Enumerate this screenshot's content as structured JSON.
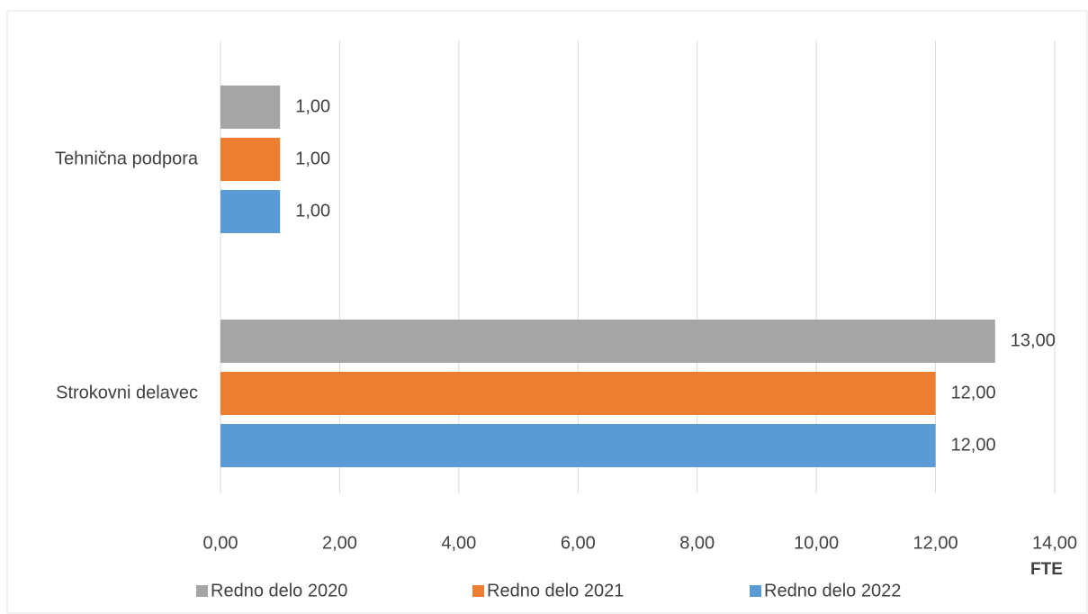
{
  "chart_data": {
    "type": "hbar",
    "categories": [
      "Tehnična podpora",
      "Strokovni delavec"
    ],
    "series": [
      {
        "name": "Redno delo 2020",
        "color": "#a5a5a5",
        "values": [
          1,
          13
        ],
        "value_labels": [
          "1,00",
          "13,00"
        ]
      },
      {
        "name": "Redno delo 2021",
        "color": "#ed7d31",
        "values": [
          1,
          12
        ],
        "value_labels": [
          "1,00",
          "12,00"
        ]
      },
      {
        "name": "Redno delo 2022",
        "color": "#5b9bd5",
        "values": [
          1,
          12
        ],
        "value_labels": [
          "1,00",
          "12,00"
        ]
      }
    ],
    "xlabel": "FTE",
    "xlim": [
      0,
      14
    ],
    "xticks": [
      {
        "value": 0,
        "label": "0,00"
      },
      {
        "value": 2,
        "label": "2,00"
      },
      {
        "value": 4,
        "label": "4,00"
      },
      {
        "value": 6,
        "label": "6,00"
      },
      {
        "value": 8,
        "label": "8,00"
      },
      {
        "value": 10,
        "label": "10,00"
      },
      {
        "value": 12,
        "label": "12,00"
      },
      {
        "value": 14,
        "label": "14,00"
      }
    ],
    "grid": true,
    "legend": "bottom"
  }
}
